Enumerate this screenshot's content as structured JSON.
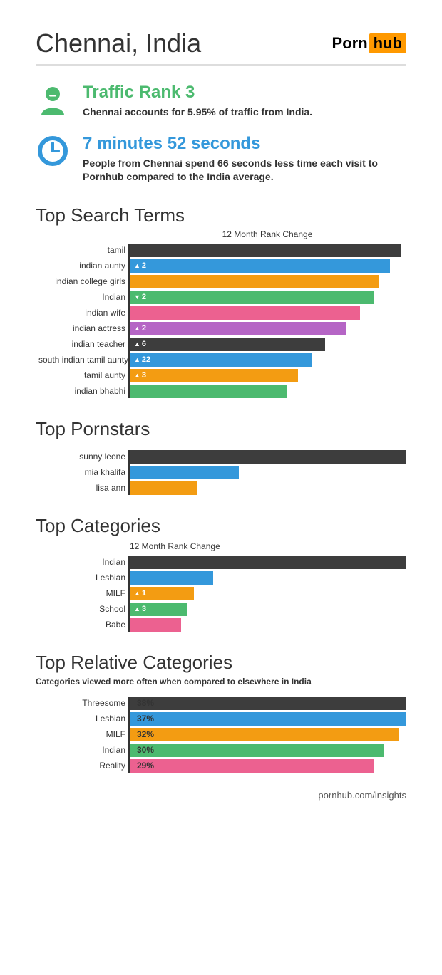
{
  "header": {
    "title": "Chennai, India",
    "logo_porn": "Porn",
    "logo_hub": "hub"
  },
  "colors": {
    "dark": "#3d3d3d",
    "blue": "#3498db",
    "orange": "#f39c12",
    "green": "#4cba6f",
    "pink": "#ec6190",
    "purple": "#b565c5",
    "accent_green": "#4cba6f",
    "accent_blue": "#3498db"
  },
  "stats": {
    "rank": {
      "headline": "Traffic Rank 3",
      "sub": "Chennai accounts for 5.95% of traffic from India.",
      "color": "#4cba6f"
    },
    "time": {
      "headline": "7 minutes 52 seconds",
      "sub": "People from Chennai spend 66 seconds less time each visit to Pornhub compared to the India average.",
      "color": "#3498db"
    }
  },
  "sections": {
    "search": {
      "title": "Top Search Terms",
      "subtitle": "12 Month Rank Change",
      "max_width": 380,
      "rows": [
        {
          "label": "tamil",
          "pct": 100,
          "color": "#3d3d3d",
          "change": null,
          "dir": null
        },
        {
          "label": "indian aunty",
          "pct": 96,
          "color": "#3498db",
          "change": "2",
          "dir": "up"
        },
        {
          "label": "indian college girls",
          "pct": 92,
          "color": "#f39c12",
          "change": null,
          "dir": null
        },
        {
          "label": "Indian",
          "pct": 90,
          "color": "#4cba6f",
          "change": "2",
          "dir": "down"
        },
        {
          "label": "indian wife",
          "pct": 85,
          "color": "#ec6190",
          "change": null,
          "dir": null
        },
        {
          "label": "indian actress",
          "pct": 80,
          "color": "#b565c5",
          "change": "2",
          "dir": "up"
        },
        {
          "label": "indian teacher",
          "pct": 72,
          "color": "#3d3d3d",
          "change": "6",
          "dir": "up"
        },
        {
          "label": "south indian tamil aunty",
          "pct": 67,
          "color": "#3498db",
          "change": "22",
          "dir": "up"
        },
        {
          "label": "tamil aunty",
          "pct": 62,
          "color": "#f39c12",
          "change": "3",
          "dir": "up"
        },
        {
          "label": "indian bhabhi",
          "pct": 58,
          "color": "#4cba6f",
          "change": null,
          "dir": null
        }
      ]
    },
    "pornstars": {
      "title": "Top Pornstars",
      "max_width": 450,
      "rows": [
        {
          "label": "sunny leone",
          "pct": 100,
          "color": "#3d3d3d"
        },
        {
          "label": "mia khalifa",
          "pct": 34,
          "color": "#3498db"
        },
        {
          "label": "lisa ann",
          "pct": 21,
          "color": "#f39c12"
        }
      ]
    },
    "categories": {
      "title": "Top Categories",
      "subtitle": "12 Month Rank Change",
      "max_width": 450,
      "rows": [
        {
          "label": "Indian",
          "pct": 100,
          "color": "#3d3d3d",
          "change": null,
          "dir": null
        },
        {
          "label": "Lesbian",
          "pct": 26,
          "color": "#3498db",
          "change": null,
          "dir": null
        },
        {
          "label": "MILF",
          "pct": 20,
          "color": "#f39c12",
          "change": "1",
          "dir": "up"
        },
        {
          "label": "School",
          "pct": 18,
          "color": "#4cba6f",
          "change": "3",
          "dir": "up"
        },
        {
          "label": "Babe",
          "pct": 16,
          "color": "#ec6190",
          "change": null,
          "dir": null
        }
      ]
    },
    "relative": {
      "title": "Top Relative Categories",
      "subtitle": "Categories viewed more often when compared to elsewhere in India",
      "max_width": 450,
      "rows": [
        {
          "label": "Threesome",
          "pct": 100,
          "color": "#3d3d3d",
          "val": "38%"
        },
        {
          "label": "Lesbian",
          "pct": 97,
          "color": "#3498db",
          "val": "37%"
        },
        {
          "label": "MILF",
          "pct": 84,
          "color": "#f39c12",
          "val": "32%"
        },
        {
          "label": "Indian",
          "pct": 79,
          "color": "#4cba6f",
          "val": "30%"
        },
        {
          "label": "Reality",
          "pct": 76,
          "color": "#ec6190",
          "val": "29%"
        }
      ]
    }
  },
  "footer": "pornhub.com/insights"
}
